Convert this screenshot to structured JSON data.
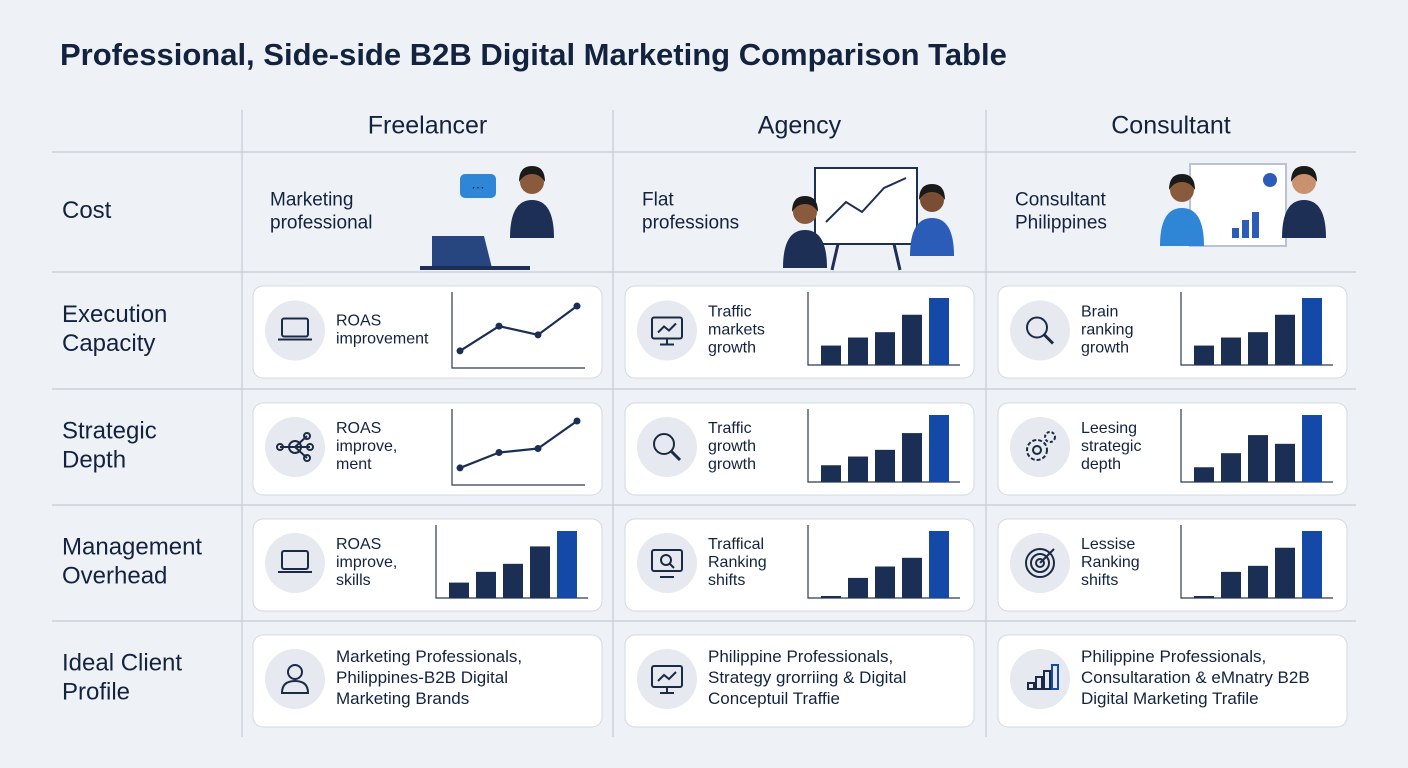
{
  "title": "Professional, Side-side B2B Digital Marketing Comparison Table",
  "columns": [
    "Freelancer",
    "Agency",
    "Consultant"
  ],
  "rows": [
    {
      "label": [
        "Cost"
      ],
      "cells": [
        {
          "text": [
            "Marketing",
            "professional"
          ]
        },
        {
          "text": [
            "Flat",
            "professions"
          ]
        },
        {
          "text": [
            "Consultant",
            "Philippines"
          ]
        }
      ]
    },
    {
      "label": [
        "Execution",
        "Capacity"
      ],
      "cells": [
        {
          "text": [
            "ROAS",
            "improvement"
          ],
          "chart": {
            "type": "line",
            "ylim": [
              0,
              100
            ],
            "values": [
              21,
              58,
              45,
              88
            ]
          }
        },
        {
          "text": [
            "Traffic",
            "markets",
            "growth"
          ],
          "chart": {
            "type": "bar",
            "ylim": [
              0,
              100
            ],
            "values": [
              29,
              41,
              49,
              75,
              100
            ]
          }
        },
        {
          "text": [
            "Brain",
            "ranking",
            "growth"
          ],
          "chart": {
            "type": "bar",
            "ylim": [
              0,
              100
            ],
            "values": [
              29,
              41,
              49,
              75,
              100
            ]
          }
        }
      ]
    },
    {
      "label": [
        "Strategic",
        "Depth"
      ],
      "cells": [
        {
          "text": [
            "ROAS",
            "improve,",
            "ment"
          ],
          "chart": {
            "type": "line",
            "ylim": [
              0,
              100
            ],
            "values": [
              21,
              44,
              50,
              91
            ]
          }
        },
        {
          "text": [
            "Traffic",
            "growth",
            "growth"
          ],
          "chart": {
            "type": "bar",
            "ylim": [
              0,
              100
            ],
            "values": [
              25,
              38,
              48,
              73,
              100
            ]
          }
        },
        {
          "text": [
            "Leesing",
            "strategic",
            "depth"
          ],
          "chart": {
            "type": "bar",
            "ylim": [
              0,
              100
            ],
            "values": [
              22,
              43,
              70,
              57,
              100
            ]
          }
        }
      ]
    },
    {
      "label": [
        "Management",
        "Overhead"
      ],
      "cells": [
        {
          "text": [
            "ROAS",
            "improve,",
            "skills"
          ],
          "chart": {
            "type": "bar",
            "ylim": [
              0,
              100
            ],
            "values": [
              23,
              39,
              51,
              77,
              100
            ]
          }
        },
        {
          "text": [
            "Traffical",
            "Ranking",
            "shifts"
          ],
          "chart": {
            "type": "bar",
            "ylim": [
              0,
              100
            ],
            "values": [
              3,
              30,
              47,
              60,
              100
            ]
          }
        },
        {
          "text": [
            "Lessise",
            "Ranking",
            "shifts"
          ],
          "chart": {
            "type": "bar",
            "ylim": [
              0,
              100
            ],
            "values": [
              3,
              39,
              48,
              75,
              100
            ]
          }
        }
      ]
    },
    {
      "label": [
        "Ideal Client",
        "Profile"
      ],
      "cells": [
        {
          "text": [
            "Marketing Professionals,",
            "Philippines-B2B Digital",
            "Marketing Brands"
          ]
        },
        {
          "text": [
            "Philippine Professionals,",
            "Strategy grorriing & Digital",
            "Conceptuil Traffie"
          ]
        },
        {
          "text": [
            "Philippine Professionals,",
            "Consultaration & eMnatry B2B",
            "Digital Marketing Trafile"
          ]
        }
      ]
    }
  ]
}
